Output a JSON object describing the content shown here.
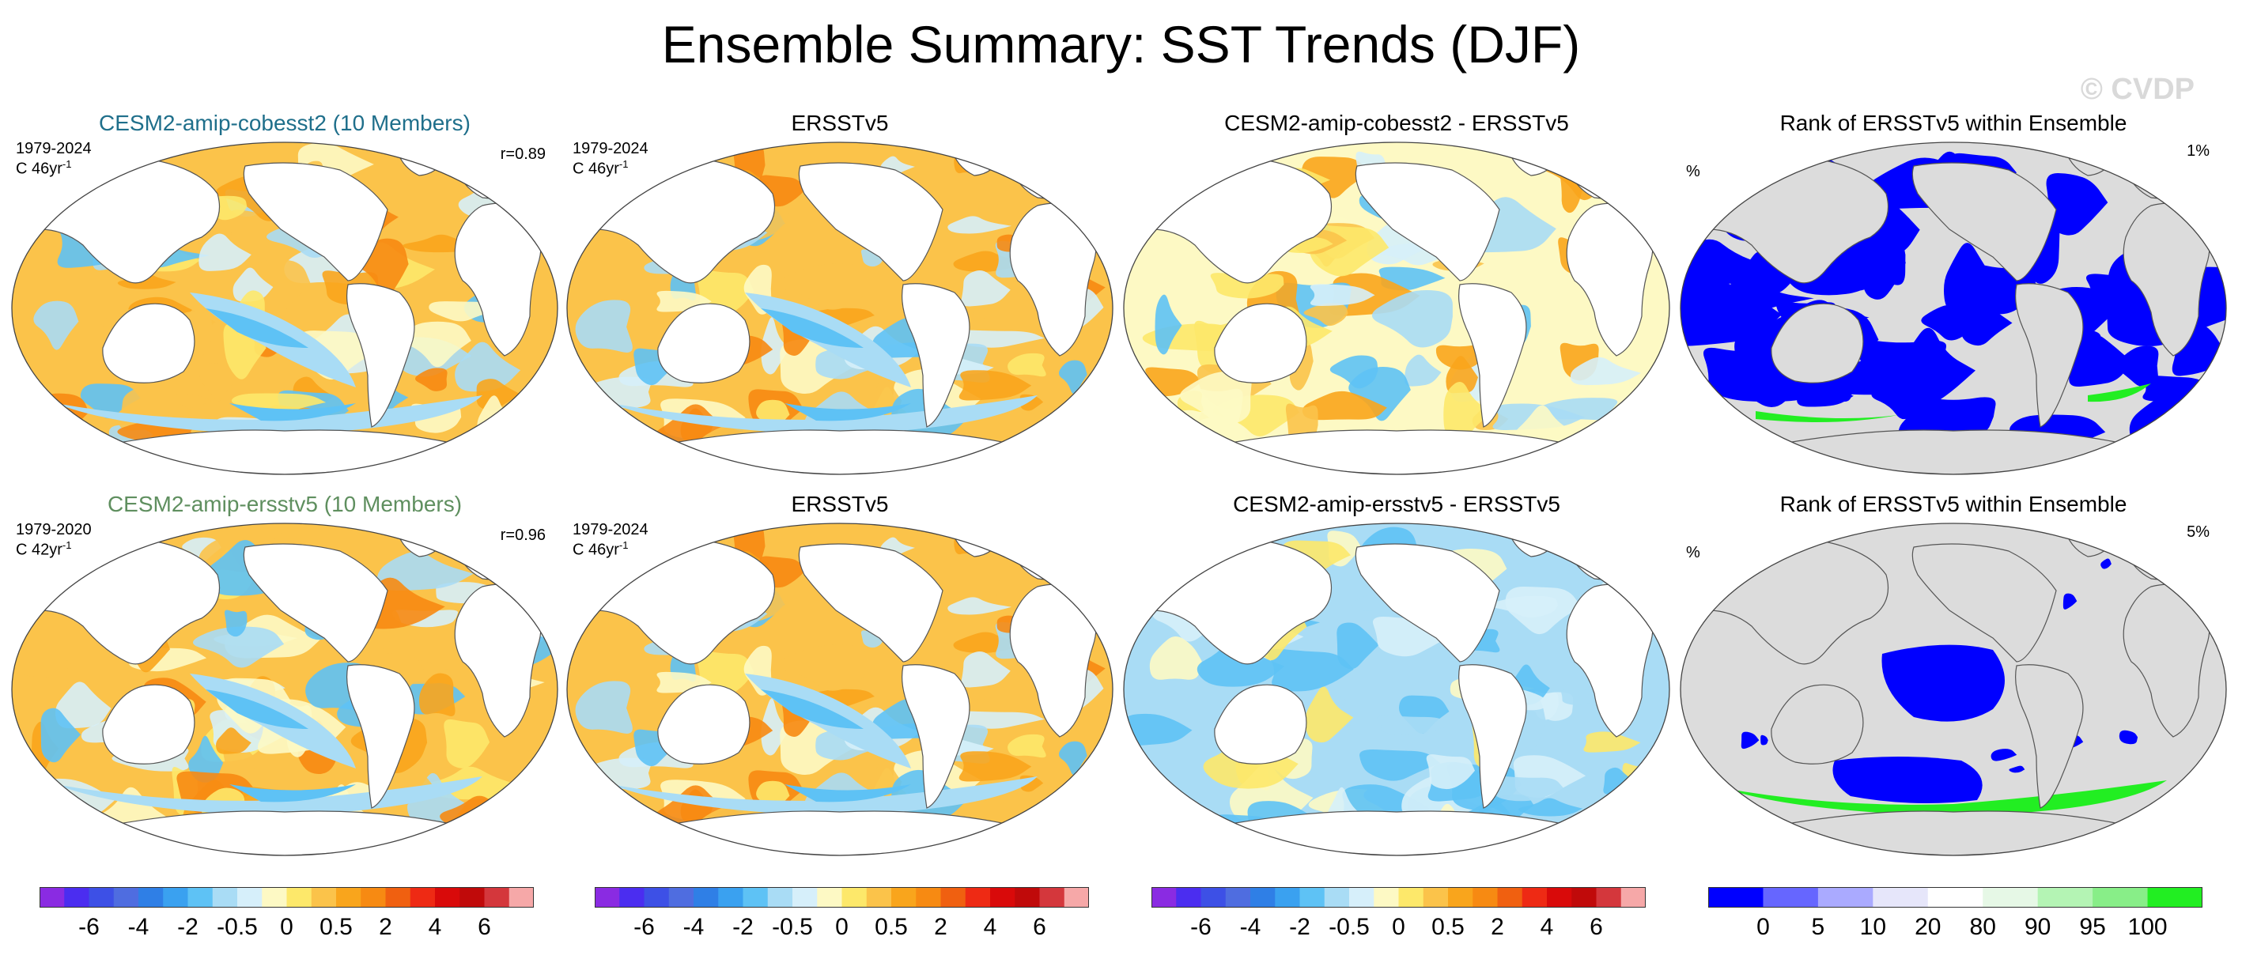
{
  "title": "Ensemble Summary: SST Trends (DJF)",
  "watermark": "© CVDP",
  "rows": [
    {
      "model": {
        "title": "CESM2-amip-cobesst2 (10 Members)",
        "title_color": "#1f6f8b",
        "period": "1979-2024",
        "units": "C 46yr",
        "units_sup": "-1",
        "correlation": "r=0.89"
      },
      "obs": {
        "title": "ERSSTv5",
        "period": "1979-2024",
        "units": "C 46yr",
        "units_sup": "-1"
      },
      "diff": {
        "title": "CESM2-amip-cobesst2 - ERSSTv5"
      },
      "rank": {
        "title": "Rank of ERSSTv5 within Ensemble",
        "left_label": "%",
        "right_label": "1%"
      }
    },
    {
      "model": {
        "title": "CESM2-amip-ersstv5 (10 Members)",
        "title_color": "#5f8f5f",
        "period": "1979-2020",
        "units": "C 42yr",
        "units_sup": "-1",
        "correlation": "r=0.96"
      },
      "obs": {
        "title": "ERSSTv5",
        "period": "1979-2024",
        "units": "C 46yr",
        "units_sup": "-1"
      },
      "diff": {
        "title": "CESM2-amip-ersstv5 - ERSSTv5"
      },
      "rank": {
        "title": "Rank of ERSSTv5 within Ensemble",
        "left_label": "%",
        "right_label": "5%"
      }
    }
  ],
  "colorbars": {
    "trend": {
      "colors": [
        "#8a2be2",
        "#4b2df0",
        "#3d50e6",
        "#4f6de0",
        "#2f7fe6",
        "#3aa1f0",
        "#5ec2f5",
        "#a9dcf5",
        "#d6effa",
        "#fdf9c4",
        "#fde86a",
        "#fbc34a",
        "#f9a51c",
        "#f78a12",
        "#f06010",
        "#ee2a14",
        "#d90a0a",
        "#c00a0a",
        "#d4373c",
        "#f6a8a8"
      ],
      "tick_labels": [
        "-6",
        "-4",
        "-2",
        "-0.5",
        "0",
        "0.5",
        "2",
        "4",
        "6"
      ]
    },
    "rank": {
      "colors": [
        "#0000ff",
        "#6666ff",
        "#aaaaff",
        "#e6e6fa",
        "#ffffff",
        "#e6f8e6",
        "#b4f4b4",
        "#88ee88",
        "#22ee22"
      ],
      "tick_labels": [
        "0",
        "5",
        "10",
        "20",
        "80",
        "90",
        "95",
        "100"
      ]
    }
  },
  "map_colors": {
    "land": "#ffffff",
    "land_rank": "#dcdcdc",
    "coast": "#555555"
  }
}
